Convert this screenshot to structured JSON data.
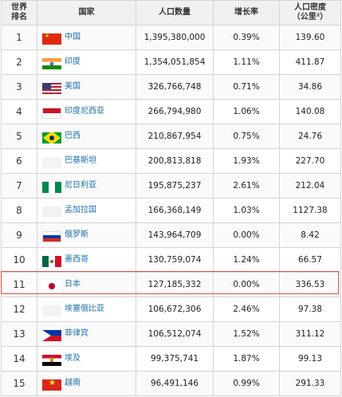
{
  "header": {
    "rank_label": "世界\n排名",
    "country_label": "国家",
    "population_label": "人口数量",
    "growth_label": "增长率",
    "density_label": "人口密度\n（公里²）"
  },
  "rows": [
    {
      "rank": "1",
      "country": "中国",
      "flag": "china-flag-icon",
      "population": "1,395,380,000",
      "growth": "0.39%",
      "density": "139.60"
    },
    {
      "rank": "2",
      "country": "印度",
      "flag": "india-flag-icon",
      "population": "1,354,051,854",
      "growth": "1.11%",
      "density": "411.87"
    },
    {
      "rank": "3",
      "country": "美国",
      "flag": "usa-flag-icon",
      "population": "326,766,748",
      "growth": "0.71%",
      "density": "34.86"
    },
    {
      "rank": "4",
      "country": "印度尼西亚",
      "flag": "indonesia-flag-icon",
      "population": "266,794,980",
      "growth": "1.06%",
      "density": "140.08"
    },
    {
      "rank": "5",
      "country": "巴西",
      "flag": "brazil-flag-icon",
      "population": "210,867,954",
      "growth": "0.75%",
      "density": "24.76"
    },
    {
      "rank": "6",
      "country": "巴基斯坦",
      "flag": "pakistan-flag-icon",
      "population": "200,813,818",
      "growth": "1.93%",
      "density": "227.70"
    },
    {
      "rank": "7",
      "country": "尼日利亚",
      "flag": "nigeria-flag-icon",
      "population": "195,875,237",
      "growth": "2.61%",
      "density": "212.04"
    },
    {
      "rank": "8",
      "country": "孟加拉国",
      "flag": "bangladesh-flag-icon",
      "population": "166,368,149",
      "growth": "1.03%",
      "density": "1127.38"
    },
    {
      "rank": "9",
      "country": "俄罗斯",
      "flag": "russia-flag-icon",
      "population": "143,964,709",
      "growth": "0.00%",
      "density": "8.42"
    },
    {
      "rank": "10",
      "country": "墨西哥",
      "flag": "mexico-flag-icon",
      "population": "130,759,074",
      "growth": "1.24%",
      "density": "66.57"
    },
    {
      "rank": "11",
      "country": "日本",
      "flag": "japan-flag-icon",
      "population": "127,185,332",
      "growth": "0.00%",
      "density": "336.53"
    },
    {
      "rank": "12",
      "country": "埃塞俄比亚",
      "flag": "ethiopia-flag-icon",
      "population": "106,672,306",
      "growth": "2.46%",
      "density": "97.38"
    },
    {
      "rank": "13",
      "country": "菲律宾",
      "flag": "philippines-flag-icon",
      "population": "106,512,074",
      "growth": "1.52%",
      "density": "311.12"
    },
    {
      "rank": "14",
      "country": "埃及",
      "flag": "egypt-flag-icon",
      "population": "99,375,741",
      "growth": "1.87%",
      "density": "99.13"
    },
    {
      "rank": "15",
      "country": "越南",
      "flag": "vietnam-flag-icon",
      "population": "96,491,146",
      "growth": "0.99%",
      "density": "291.33"
    }
  ],
  "highlight": {
    "rank": "11",
    "color": "#e05050"
  },
  "colors": {
    "country_link": "#1a6fb0",
    "header_bg": "#f0f0f0",
    "border": "#d4d4d4"
  }
}
